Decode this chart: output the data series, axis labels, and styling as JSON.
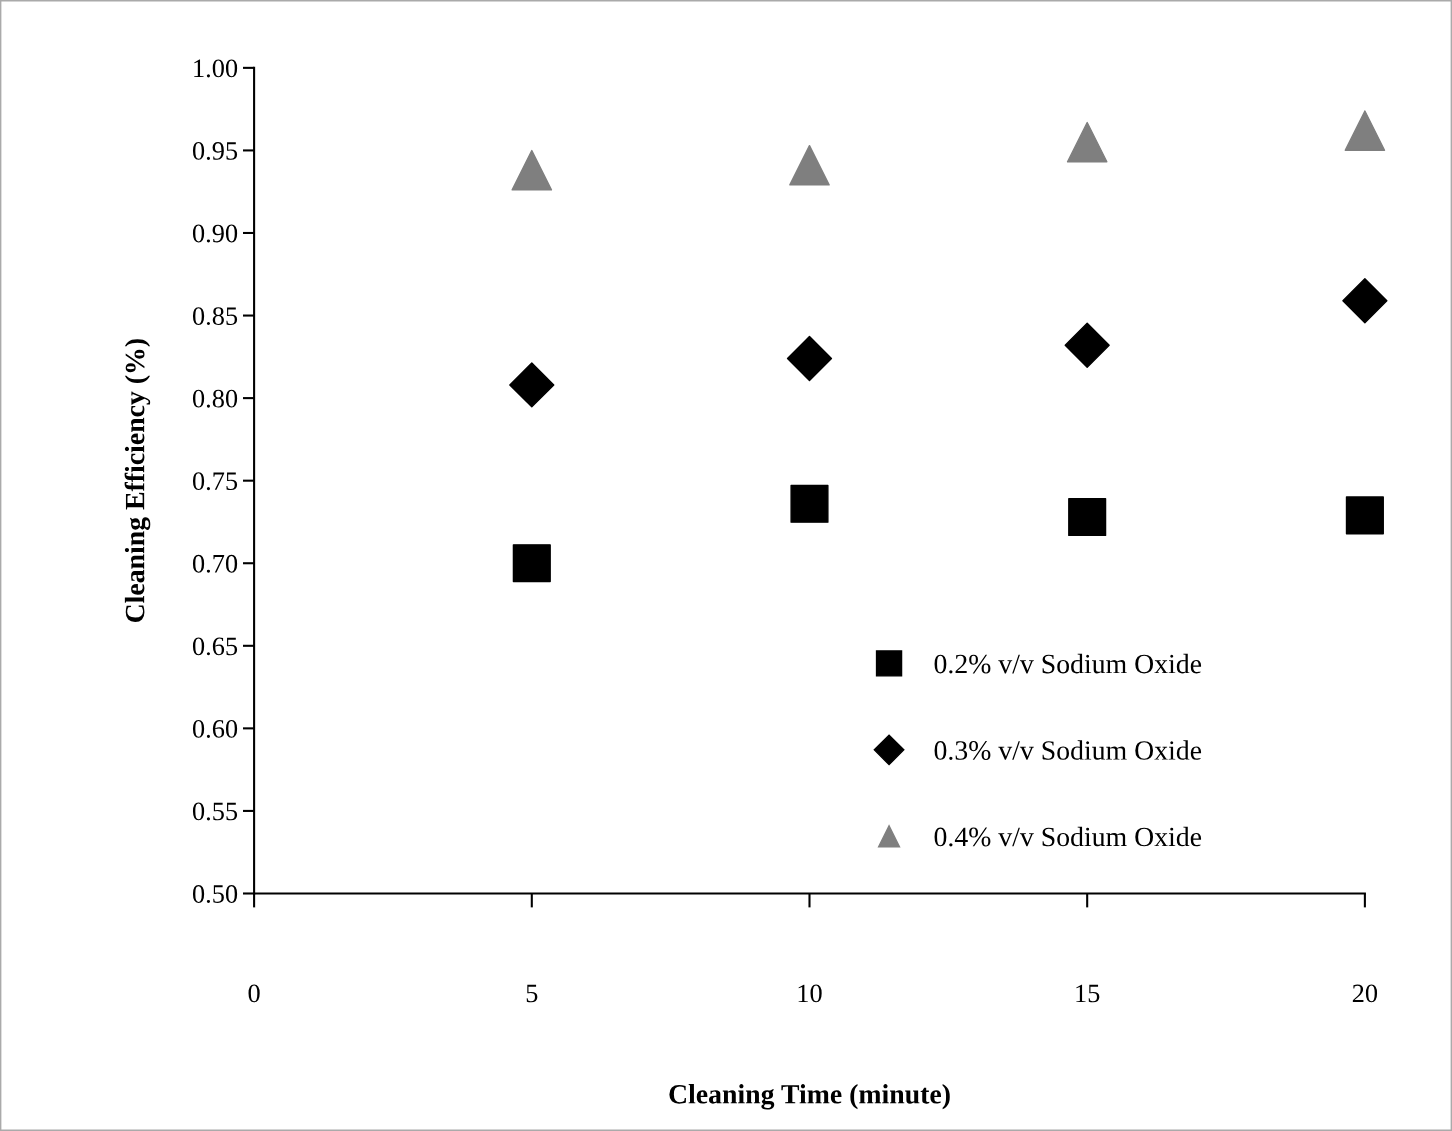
{
  "chart_data": {
    "type": "scatter",
    "xlabel": "Cleaning Time (minute)",
    "ylabel": "Cleaning Efficiency (%)",
    "x": [
      5,
      10,
      15,
      20
    ],
    "series": [
      {
        "name": "0.2% v/v Sodium Oxide",
        "color": "#000000",
        "marker": "square",
        "values": [
          0.7,
          0.736,
          0.728,
          0.729
        ]
      },
      {
        "name": "0.3% v/v Sodium Oxide",
        "color": "#000000",
        "marker": "diamond",
        "values": [
          0.808,
          0.824,
          0.832,
          0.859
        ]
      },
      {
        "name": "0.4% v/v Sodium Oxide",
        "color": "#7f7f7f",
        "marker": "triangle",
        "values": [
          0.938,
          0.941,
          0.955,
          0.962
        ]
      }
    ],
    "xlim": [
      0,
      20
    ],
    "xticks": [
      0,
      5,
      10,
      15,
      20
    ],
    "ylim": [
      0.5,
      1.0
    ],
    "yticks": [
      {
        "value": 0.5,
        "label": "0.50"
      },
      {
        "value": 0.55,
        "label": "0.55"
      },
      {
        "value": 0.6,
        "label": "0.60"
      },
      {
        "value": 0.65,
        "label": "0.65"
      },
      {
        "value": 0.7,
        "label": "0.70"
      },
      {
        "value": 0.75,
        "label": "0.75"
      },
      {
        "value": 0.8,
        "label": "0.80"
      },
      {
        "value": 0.85,
        "label": "0.85"
      },
      {
        "value": 0.9,
        "label": "0.90"
      },
      {
        "value": 0.95,
        "label": "0.95"
      },
      {
        "value": 1.0,
        "label": "1.00"
      }
    ],
    "grid": false,
    "legend": "bottom right"
  }
}
